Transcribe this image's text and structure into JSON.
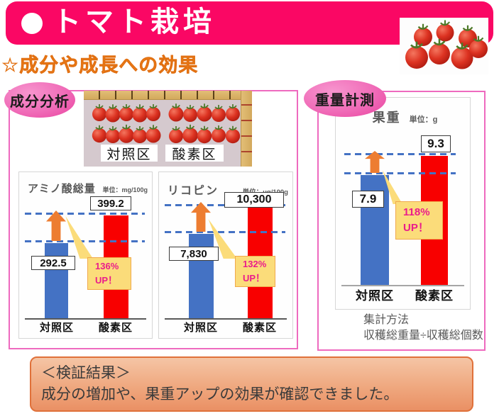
{
  "header": {
    "title": "トマト栽培"
  },
  "subtitle": "☆成分や成長への効果",
  "panels": {
    "left": {
      "badge": "成分分析",
      "photo_labels": [
        "対照区",
        "酸素区"
      ]
    },
    "right": {
      "badge": "重量計測",
      "method_title": "集計方法",
      "method_formula": "収穫総重量÷収穫総個数"
    }
  },
  "result_box": {
    "heading": "＜検証結果＞",
    "body": "成分の増加や、果重アップの効果が確認できました。"
  },
  "chart_data": [
    {
      "type": "bar",
      "title": "アミノ酸総量",
      "unit": "単位：mg/100g",
      "categories": [
        "対照区",
        "酸素区"
      ],
      "values": [
        292.5,
        399.2
      ],
      "value_labels": [
        "292.5",
        "399.2"
      ],
      "series_colors": [
        "#4472C4",
        "#F80000"
      ],
      "callout": {
        "line1": "136%",
        "line2": "UP！"
      },
      "baseline": 0,
      "grid": false,
      "annotations": [
        "blue dashed level lines at both bar tops",
        "orange up arrow from control level to oxygen level"
      ]
    },
    {
      "type": "bar",
      "title": "リコピン",
      "unit": "単位：μg/100g",
      "categories": [
        "対照区",
        "酸素区"
      ],
      "values": [
        7830,
        10300
      ],
      "value_labels": [
        "7,830",
        "10,300"
      ],
      "series_colors": [
        "#4472C4",
        "#F80000"
      ],
      "callout": {
        "line1": "132%",
        "line2": "UP！"
      },
      "baseline": 0,
      "grid": false,
      "annotations": [
        "blue dashed level lines at both bar tops",
        "orange up arrow from control level to oxygen level"
      ]
    },
    {
      "type": "bar",
      "title": "果重",
      "unit": "単位：g",
      "categories": [
        "対照区",
        "酸素区"
      ],
      "values": [
        7.9,
        9.3
      ],
      "value_labels": [
        "7.9",
        "9.3"
      ],
      "series_colors": [
        "#4472C4",
        "#F80000"
      ],
      "callout": {
        "line1": "118%",
        "line2": "UP！"
      },
      "baseline": 0,
      "grid": false,
      "annotations": [
        "blue dashed level lines at both bar tops",
        "orange up arrow from control level to oxygen level"
      ]
    }
  ],
  "colors": {
    "header_pink": "#FA0764",
    "panel_border_pink": "#EE6ABF",
    "badge_pink": "#F06CB8",
    "subtitle_orange": "#F0821C",
    "bar_control_blue": "#4472C4",
    "bar_oxygen_red": "#F80000",
    "dashed_line_blue": "#4472C4",
    "arrow_orange": "#ED7D31",
    "callout_yellow": "#FBDC7A",
    "callout_text_magenta": "#EA1C8B",
    "result_box_border": "#E0713A",
    "result_box_fill": "#EFA87F"
  }
}
